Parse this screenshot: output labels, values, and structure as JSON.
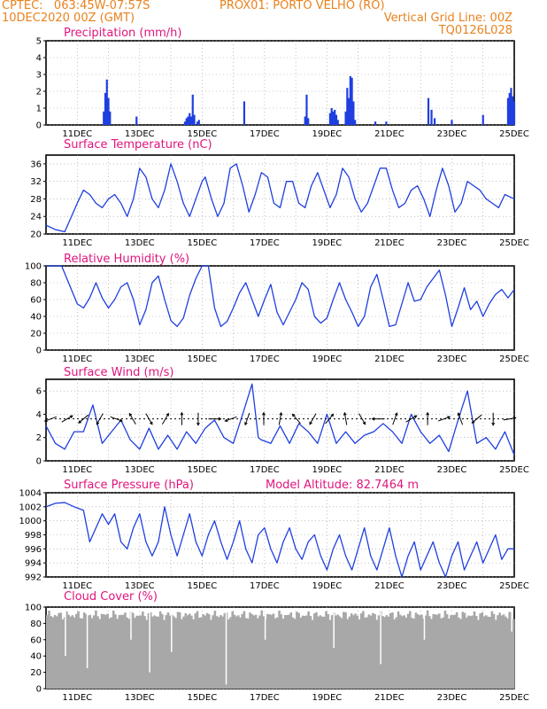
{
  "header": {
    "line1_left": "CPTEC:   063:45W-07:57S",
    "line1_right": "PROX01: PORTO VELHO (RO)",
    "line2_left": "10DEC2020 00Z (GMT)",
    "line2_right": "Vertical Grid Line: 00Z",
    "line3_right": "TQ0126L028"
  },
  "colors": {
    "header": "#e8821e",
    "panel_title": "#e0147d",
    "series": "#1f3fe0",
    "cloud": "#a8a8a8",
    "grid": "#9a9a9a",
    "arrow": "#000000"
  },
  "x_ticks": [
    "11DEC",
    "13DEC",
    "15DEC",
    "17DEC",
    "19DEC",
    "21DEC",
    "23DEC",
    "25DEC"
  ],
  "model_altitude": "Model Altitude: 82.7464 m",
  "chart_data": [
    {
      "type": "bar",
      "title": "Precipitation (mm/h)",
      "ylim": [
        0,
        5
      ],
      "yticks": [
        "0",
        "1",
        "2",
        "3",
        "4",
        "5"
      ],
      "x": [
        "11.85",
        "11.9",
        "11.95",
        "12.0",
        "12.05",
        "12.9",
        "14.45",
        "14.5",
        "14.55",
        "14.6",
        "14.65",
        "14.7",
        "14.75",
        "14.85",
        "14.9",
        "16.35",
        "18.3",
        "18.35",
        "18.4",
        "19.1",
        "19.15",
        "19.2",
        "19.25",
        "19.3",
        "19.35",
        "19.6",
        "19.65",
        "19.7",
        "19.75",
        "19.8",
        "19.85",
        "19.9",
        "20.55",
        "20.9",
        "22.25",
        "22.35",
        "22.45",
        "23.0",
        "24.0",
        "24.8",
        "24.85",
        "24.9",
        "24.95",
        "25.0"
      ],
      "values": [
        0.8,
        1.9,
        2.7,
        1.6,
        0.8,
        0.5,
        0.2,
        0.4,
        0.5,
        0.7,
        0.5,
        1.8,
        0.6,
        0.2,
        0.3,
        1.4,
        0.5,
        1.8,
        0.4,
        0.7,
        1.0,
        0.8,
        0.9,
        0.6,
        0.3,
        0.8,
        2.2,
        1.6,
        2.9,
        2.8,
        1.4,
        0.3,
        0.2,
        0.2,
        1.6,
        0.9,
        0.4,
        0.3,
        0.6,
        1.6,
        1.9,
        2.2,
        1.7,
        1.4
      ]
    },
    {
      "type": "line",
      "title": "Surface Temperature (nC)",
      "ylim": [
        20,
        38
      ],
      "yticks": [
        "20",
        "24",
        "28",
        "32",
        "36"
      ],
      "x": [
        10.0,
        10.3,
        10.6,
        11.0,
        11.2,
        11.4,
        11.6,
        11.8,
        12.0,
        12.2,
        12.4,
        12.6,
        12.8,
        13.0,
        13.2,
        13.4,
        13.6,
        13.8,
        14.0,
        14.2,
        14.4,
        14.6,
        14.8,
        15.0,
        15.1,
        15.3,
        15.5,
        15.7,
        15.9,
        16.1,
        16.3,
        16.5,
        16.7,
        16.9,
        17.1,
        17.3,
        17.5,
        17.7,
        17.9,
        18.1,
        18.3,
        18.5,
        18.7,
        18.9,
        19.1,
        19.3,
        19.5,
        19.7,
        19.9,
        20.1,
        20.3,
        20.5,
        20.7,
        20.9,
        21.1,
        21.3,
        21.5,
        21.7,
        21.9,
        22.1,
        22.3,
        22.5,
        22.7,
        22.9,
        23.1,
        23.3,
        23.5,
        23.7,
        23.9,
        24.1,
        24.3,
        24.5,
        24.7,
        25.0
      ],
      "values": [
        22,
        21,
        20.5,
        27,
        30,
        29,
        27,
        26,
        28,
        29,
        27,
        24,
        28,
        35,
        33,
        28,
        26,
        30,
        36,
        32,
        27,
        24,
        28,
        32,
        33,
        28,
        24,
        27,
        35,
        36,
        31,
        25,
        29,
        34,
        33,
        27,
        26,
        32,
        32,
        27,
        26,
        31,
        34,
        30,
        26,
        29,
        35,
        33,
        28,
        25,
        27,
        31,
        35,
        35,
        30,
        26,
        27,
        30,
        31,
        28,
        24,
        30,
        35,
        31,
        25,
        27,
        32,
        31,
        30,
        28,
        27,
        26,
        29,
        28
      ]
    },
    {
      "type": "line",
      "title": "Relative Humidity (%)",
      "ylim": [
        0,
        100
      ],
      "yticks": [
        "0",
        "20",
        "40",
        "60",
        "80",
        "100"
      ],
      "x": [
        10.0,
        10.5,
        11.0,
        11.2,
        11.4,
        11.6,
        11.8,
        12.0,
        12.2,
        12.4,
        12.6,
        12.8,
        13.0,
        13.2,
        13.4,
        13.6,
        13.8,
        14.0,
        14.2,
        14.4,
        14.6,
        14.8,
        15.0,
        15.2,
        15.4,
        15.6,
        15.8,
        16.0,
        16.2,
        16.4,
        16.6,
        16.8,
        17.0,
        17.2,
        17.4,
        17.6,
        17.8,
        18.0,
        18.2,
        18.4,
        18.6,
        18.8,
        19.0,
        19.2,
        19.4,
        19.6,
        19.8,
        20.0,
        20.2,
        20.4,
        20.6,
        20.8,
        21.0,
        21.2,
        21.4,
        21.6,
        21.8,
        22.0,
        22.2,
        22.4,
        22.6,
        22.8,
        23.0,
        23.2,
        23.4,
        23.6,
        23.8,
        24.0,
        24.2,
        24.4,
        24.6,
        24.8,
        25.0
      ],
      "values": [
        100,
        100,
        55,
        50,
        62,
        80,
        62,
        50,
        60,
        75,
        80,
        60,
        30,
        48,
        80,
        88,
        60,
        35,
        28,
        38,
        65,
        85,
        100,
        100,
        50,
        28,
        34,
        50,
        68,
        80,
        60,
        40,
        60,
        78,
        45,
        30,
        45,
        60,
        80,
        72,
        40,
        32,
        38,
        60,
        80,
        60,
        45,
        28,
        40,
        75,
        90,
        60,
        28,
        30,
        55,
        80,
        58,
        60,
        75,
        85,
        95,
        65,
        28,
        50,
        74,
        48,
        58,
        40,
        55,
        66,
        72,
        62,
        72
      ]
    },
    {
      "type": "line",
      "title": "Surface Wind (m/s)",
      "ylim": [
        0,
        7
      ],
      "yticks": [
        "0",
        "2",
        "4",
        "6"
      ],
      "note": "wind direction arrows along 3.6 m/s reference line",
      "x": [
        10.0,
        10.3,
        10.6,
        10.9,
        11.2,
        11.5,
        11.8,
        12.1,
        12.4,
        12.7,
        13.0,
        13.3,
        13.6,
        13.9,
        14.2,
        14.5,
        14.8,
        15.1,
        15.4,
        15.7,
        16.0,
        16.3,
        16.6,
        16.8,
        16.9,
        17.2,
        17.5,
        17.8,
        18.1,
        18.4,
        18.7,
        19.0,
        19.3,
        19.6,
        19.9,
        20.2,
        20.5,
        20.8,
        21.1,
        21.4,
        21.7,
        22.0,
        22.3,
        22.6,
        22.9,
        23.2,
        23.5,
        23.8,
        24.1,
        24.4,
        24.7,
        25.0
      ],
      "values": [
        3,
        1.5,
        1,
        2.5,
        2.5,
        4.8,
        1.5,
        2.5,
        3.5,
        1.8,
        1,
        2.8,
        1,
        2.2,
        1,
        2.5,
        1.5,
        2.8,
        3.5,
        2,
        1.5,
        4,
        6.6,
        2,
        1.8,
        1.5,
        3,
        1.5,
        3.2,
        2.5,
        1.5,
        4,
        1.5,
        2.5,
        1.5,
        2.2,
        2.5,
        3.2,
        2.5,
        1.5,
        4,
        2.5,
        1.5,
        2.2,
        0.8,
        3.5,
        6,
        1.5,
        2,
        1,
        2.5,
        0.5
      ]
    },
    {
      "type": "line",
      "title": "Surface Pressure (hPa)",
      "ylim": [
        992,
        1004
      ],
      "yticks": [
        "992",
        "994",
        "996",
        "998",
        "1000",
        "1002",
        "1004"
      ],
      "x": [
        10.0,
        10.3,
        10.6,
        10.9,
        11.2,
        11.4,
        11.6,
        11.8,
        12.0,
        12.2,
        12.4,
        12.6,
        12.8,
        13.0,
        13.2,
        13.4,
        13.6,
        13.8,
        14.0,
        14.2,
        14.4,
        14.6,
        14.8,
        15.0,
        15.2,
        15.4,
        15.6,
        15.8,
        16.0,
        16.2,
        16.4,
        16.6,
        16.8,
        17.0,
        17.2,
        17.4,
        17.6,
        17.8,
        18.0,
        18.2,
        18.4,
        18.6,
        18.8,
        19.0,
        19.2,
        19.4,
        19.6,
        19.8,
        20.0,
        20.2,
        20.4,
        20.6,
        20.8,
        21.0,
        21.2,
        21.4,
        21.6,
        21.8,
        22.0,
        22.2,
        22.4,
        22.6,
        22.8,
        23.0,
        23.2,
        23.4,
        23.6,
        23.8,
        24.0,
        24.2,
        24.4,
        24.6,
        24.8,
        25.0
      ],
      "values": [
        1002,
        1002.5,
        1002.6,
        1002,
        1001.5,
        997,
        999,
        1001,
        999.5,
        1001,
        997,
        996,
        999,
        1001,
        997,
        995,
        997,
        1002,
        998,
        995,
        998,
        1001,
        997,
        995,
        998,
        1000,
        997,
        994.5,
        997,
        1000,
        996,
        994,
        998,
        999,
        996,
        994,
        997,
        999,
        996,
        994.5,
        997,
        998,
        995,
        993,
        996,
        998,
        995,
        993,
        996,
        999,
        995,
        993,
        996,
        999,
        995,
        992,
        995,
        997,
        993,
        995,
        997,
        994,
        992,
        995,
        997,
        993,
        995,
        997,
        994,
        996,
        998,
        994.5,
        996,
        996
      ]
    },
    {
      "type": "bar",
      "title": "Cloud Cover (%)",
      "ylim": [
        0,
        100
      ],
      "yticks": [
        "0",
        "20",
        "40",
        "60",
        "80",
        "100"
      ],
      "dips_x": [
        "10.6",
        "11.3",
        "12.7",
        "13.3",
        "14.0",
        "15.75",
        "17.0",
        "19.2",
        "20.7",
        "22.1",
        "24.9"
      ],
      "dips_values": [
        40,
        25,
        60,
        20,
        45,
        5,
        60,
        50,
        30,
        60,
        70
      ],
      "baseline": 90
    }
  ]
}
